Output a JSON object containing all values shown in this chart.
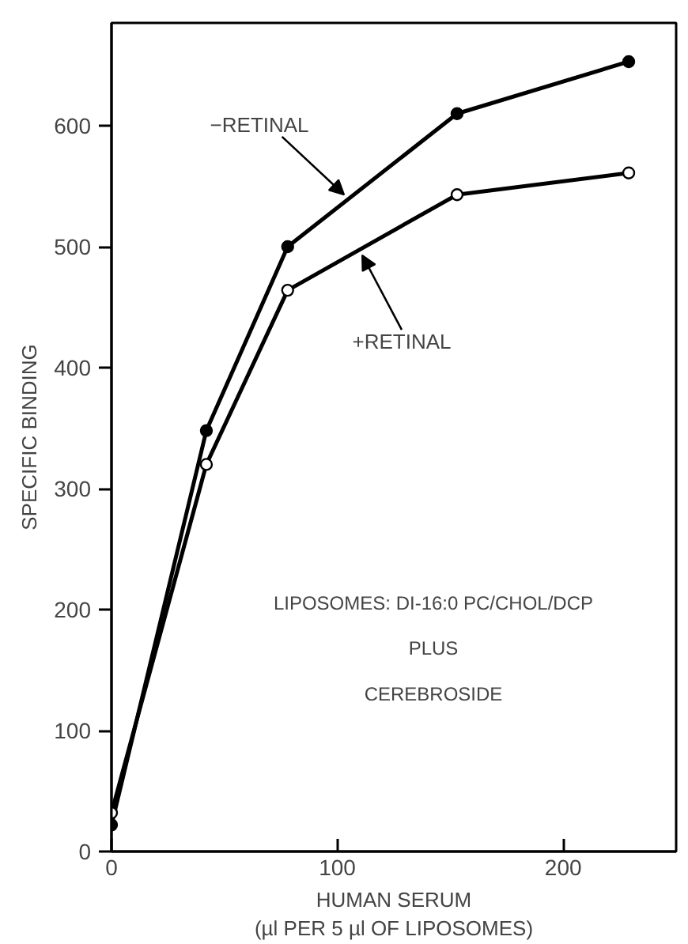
{
  "chart_data": {
    "type": "line",
    "xlabel": "HUMAN SERUM\n(µl PER 5 µl OF LIPOSOMES)",
    "ylabel": "SPECIFIC BINDING",
    "x": [
      0,
      42,
      78,
      153,
      229
    ],
    "series": [
      {
        "color": "#000000",
        "marker": "circle",
        "values": [
          22,
          348,
          500,
          610,
          653
        ]
      },
      {
        "color": "#000000",
        "marker": "circle",
        "values": [
          32,
          320,
          464,
          543,
          561
        ]
      }
    ],
    "xlim": [
      0,
      250
    ],
    "ylim": [
      0,
      685
    ],
    "xticks": [
      0,
      100,
      200
    ],
    "yticks": [
      0,
      100,
      200,
      300,
      400,
      500,
      600
    ],
    "grid": false,
    "line_style": "solid",
    "annotations": [
      {
        "text": "−RETINAL",
        "x": 103,
        "y": 543
      },
      {
        "text": "+RETINAL",
        "x": 111,
        "y": 493
      },
      "LIPOSOMES: DI-16:0 PC/CHOL/DCP",
      "PLUS",
      "CEREBROSIDE"
    ]
  }
}
